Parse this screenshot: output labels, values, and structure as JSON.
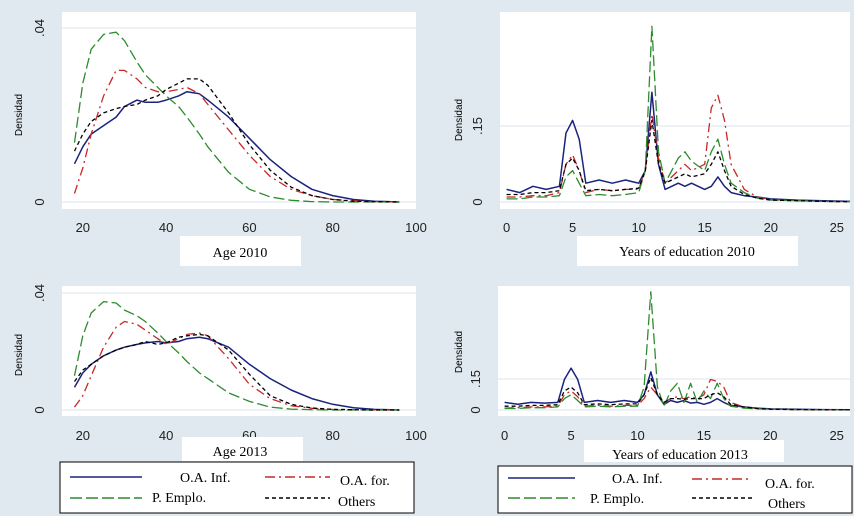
{
  "colors": {
    "background": "#dfe9ef",
    "plot_bg": "#ffffff",
    "oa_inf": "#1a237e",
    "oa_for": "#c62828",
    "p_emplo": "#2e8b2e",
    "others": "#000000"
  },
  "legend": {
    "left": [
      "O.A. Inf.",
      "O.A. for.",
      "P. Emplo.",
      "Others"
    ],
    "right": [
      "O.A. Inf.",
      "O.A. for.",
      "P. Emplo.",
      "Others"
    ]
  },
  "chart_data": [
    {
      "type": "line",
      "xlabel": "Age 2010",
      "ylabel": "Densidad",
      "xlim": [
        15,
        100
      ],
      "ylim": [
        0,
        0.041
      ],
      "xticks": [
        "20",
        "40",
        "60",
        "80",
        "100"
      ],
      "yticks": [
        "0",
        ".04"
      ],
      "x": [
        18,
        20,
        22,
        25,
        28,
        30,
        33,
        35,
        38,
        40,
        43,
        45,
        48,
        50,
        55,
        60,
        65,
        70,
        75,
        80,
        85,
        90,
        96
      ],
      "series": [
        {
          "name": "O.A. Inf.",
          "values": [
            0.009,
            0.013,
            0.016,
            0.018,
            0.02,
            0.0225,
            0.024,
            0.0235,
            0.0235,
            0.024,
            0.025,
            0.026,
            0.0255,
            0.024,
            0.02,
            0.015,
            0.01,
            0.006,
            0.003,
            0.0015,
            0.0006,
            0.0002,
            0.0
          ]
        },
        {
          "name": "O.A. for.",
          "values": [
            0.002,
            0.008,
            0.016,
            0.025,
            0.031,
            0.031,
            0.029,
            0.027,
            0.026,
            0.026,
            0.0265,
            0.027,
            0.0255,
            0.023,
            0.017,
            0.011,
            0.006,
            0.003,
            0.0015,
            0.0006,
            0.0003,
            0.0001,
            0.0
          ]
        },
        {
          "name": "P. Emplo.",
          "values": [
            0.014,
            0.028,
            0.036,
            0.0395,
            0.04,
            0.038,
            0.033,
            0.03,
            0.027,
            0.025,
            0.0225,
            0.02,
            0.016,
            0.013,
            0.007,
            0.003,
            0.0012,
            0.0004,
            0.0001,
            0.0,
            0.0,
            0.0,
            0.0
          ]
        },
        {
          "name": "Others",
          "values": [
            0.012,
            0.016,
            0.019,
            0.021,
            0.022,
            0.0225,
            0.023,
            0.024,
            0.025,
            0.0265,
            0.028,
            0.029,
            0.029,
            0.0275,
            0.021,
            0.0135,
            0.0075,
            0.0035,
            0.0015,
            0.0006,
            0.0002,
            0.0001,
            0.0
          ]
        }
      ]
    },
    {
      "type": "line",
      "xlabel": "Years of education 2010",
      "ylabel": "Densidad",
      "xlim": [
        -0.5,
        26
      ],
      "ylim": [
        0,
        0.29
      ],
      "xticks": [
        "0",
        "5",
        "10",
        "15",
        "20",
        "25"
      ],
      "yticks": [
        "0",
        ".15"
      ],
      "x": [
        0,
        1,
        2,
        3,
        4,
        4.5,
        5,
        5.5,
        6,
        7,
        8,
        9,
        10,
        10.5,
        11,
        11.5,
        12,
        13,
        13.5,
        14,
        15,
        15.5,
        16,
        16.5,
        17,
        18,
        19,
        20,
        22,
        24,
        26
      ],
      "series": [
        {
          "name": "O.A. Inf.",
          "values": [
            0.02,
            0.015,
            0.025,
            0.02,
            0.025,
            0.11,
            0.13,
            0.1,
            0.03,
            0.035,
            0.03,
            0.035,
            0.03,
            0.05,
            0.175,
            0.06,
            0.02,
            0.03,
            0.025,
            0.03,
            0.02,
            0.025,
            0.04,
            0.025,
            0.015,
            0.01,
            0.008,
            0.005,
            0.003,
            0.002,
            0.001
          ]
        },
        {
          "name": "O.A. for.",
          "values": [
            0.008,
            0.008,
            0.01,
            0.01,
            0.015,
            0.06,
            0.075,
            0.05,
            0.015,
            0.02,
            0.018,
            0.02,
            0.02,
            0.05,
            0.14,
            0.07,
            0.03,
            0.05,
            0.06,
            0.05,
            0.06,
            0.15,
            0.17,
            0.13,
            0.06,
            0.02,
            0.008,
            0.004,
            0.002,
            0.001,
            0.0005
          ]
        },
        {
          "name": "P. Emplo.",
          "values": [
            0.005,
            0.005,
            0.008,
            0.008,
            0.01,
            0.04,
            0.05,
            0.03,
            0.01,
            0.012,
            0.01,
            0.012,
            0.015,
            0.05,
            0.28,
            0.08,
            0.03,
            0.07,
            0.08,
            0.065,
            0.05,
            0.08,
            0.1,
            0.06,
            0.03,
            0.015,
            0.006,
            0.003,
            0.002,
            0.001,
            0.0005
          ]
        },
        {
          "name": "Others",
          "values": [
            0.012,
            0.012,
            0.015,
            0.015,
            0.018,
            0.06,
            0.07,
            0.05,
            0.018,
            0.02,
            0.018,
            0.02,
            0.022,
            0.05,
            0.13,
            0.06,
            0.03,
            0.04,
            0.045,
            0.04,
            0.045,
            0.06,
            0.08,
            0.05,
            0.025,
            0.012,
            0.006,
            0.003,
            0.002,
            0.001,
            0.0005
          ]
        }
      ]
    },
    {
      "type": "line",
      "xlabel": "Age 2013",
      "ylabel": "Densidad",
      "xlim": [
        15,
        100
      ],
      "ylim": [
        0,
        0.041
      ],
      "xticks": [
        "20",
        "40",
        "60",
        "80",
        "100"
      ],
      "yticks": [
        "0",
        ".04"
      ],
      "x": [
        18,
        20,
        22,
        25,
        28,
        30,
        33,
        35,
        38,
        40,
        43,
        45,
        48,
        50,
        55,
        60,
        65,
        70,
        75,
        80,
        85,
        90,
        96
      ],
      "series": [
        {
          "name": "O.A. Inf.",
          "values": [
            0.008,
            0.013,
            0.016,
            0.019,
            0.021,
            0.022,
            0.023,
            0.0235,
            0.024,
            0.0235,
            0.024,
            0.025,
            0.0255,
            0.025,
            0.022,
            0.016,
            0.011,
            0.007,
            0.004,
            0.002,
            0.0008,
            0.0002,
            0.0
          ]
        },
        {
          "name": "O.A. for.",
          "values": [
            0.001,
            0.005,
            0.012,
            0.022,
            0.029,
            0.031,
            0.03,
            0.028,
            0.025,
            0.023,
            0.025,
            0.0265,
            0.027,
            0.026,
            0.018,
            0.009,
            0.004,
            0.0015,
            0.0006,
            0.0002,
            0.0001,
            0.0,
            0.0
          ]
        },
        {
          "name": "P. Emplo.",
          "values": [
            0.012,
            0.026,
            0.034,
            0.038,
            0.0375,
            0.035,
            0.033,
            0.031,
            0.027,
            0.024,
            0.02,
            0.017,
            0.013,
            0.011,
            0.006,
            0.003,
            0.001,
            0.0003,
            0.0001,
            0.0,
            0.0,
            0.0,
            0.0
          ]
        },
        {
          "name": "Others",
          "values": [
            0.01,
            0.014,
            0.016,
            0.019,
            0.021,
            0.022,
            0.023,
            0.024,
            0.023,
            0.0235,
            0.0255,
            0.026,
            0.0265,
            0.026,
            0.021,
            0.0125,
            0.005,
            0.002,
            0.0007,
            0.0002,
            0.0001,
            0.0,
            0.0
          ]
        }
      ]
    },
    {
      "type": "line",
      "xlabel": "Years of education 2013",
      "ylabel": "Densidad",
      "xlim": [
        -0.5,
        26
      ],
      "ylim": [
        0,
        0.32
      ],
      "xticks": [
        "0",
        "5",
        "10",
        "15",
        "20",
        "25"
      ],
      "yticks": [
        "0",
        ".15"
      ],
      "x": [
        0,
        1,
        2,
        3,
        4,
        4.5,
        5,
        5.5,
        6,
        7,
        8,
        9,
        10,
        10.5,
        11,
        11.5,
        12,
        12.5,
        13,
        13.5,
        14,
        14.5,
        15,
        15.5,
        16,
        16.5,
        17,
        18,
        19,
        20,
        22,
        24,
        26
      ],
      "series": [
        {
          "name": "O.A. Inf.",
          "values": [
            0.02,
            0.015,
            0.02,
            0.018,
            0.02,
            0.08,
            0.11,
            0.08,
            0.02,
            0.025,
            0.02,
            0.025,
            0.02,
            0.04,
            0.1,
            0.04,
            0.015,
            0.025,
            0.02,
            0.025,
            0.018,
            0.02,
            0.015,
            0.02,
            0.03,
            0.02,
            0.012,
            0.008,
            0.005,
            0.003,
            0.002,
            0.001,
            0.0005
          ]
        },
        {
          "name": "O.A. for.",
          "values": [
            0.005,
            0.006,
            0.008,
            0.008,
            0.01,
            0.04,
            0.05,
            0.035,
            0.01,
            0.012,
            0.01,
            0.012,
            0.012,
            0.03,
            0.06,
            0.04,
            0.02,
            0.03,
            0.035,
            0.03,
            0.035,
            0.03,
            0.04,
            0.08,
            0.075,
            0.06,
            0.02,
            0.008,
            0.004,
            0.002,
            0.001,
            0.0005,
            0.0002
          ]
        },
        {
          "name": "P. Emplo.",
          "values": [
            0.004,
            0.004,
            0.006,
            0.006,
            0.008,
            0.03,
            0.04,
            0.025,
            0.008,
            0.01,
            0.008,
            0.01,
            0.01,
            0.06,
            0.31,
            0.06,
            0.01,
            0.05,
            0.07,
            0.02,
            0.07,
            0.02,
            0.05,
            0.03,
            0.07,
            0.03,
            0.01,
            0.005,
            0.003,
            0.002,
            0.001,
            0.0005,
            0.0002
          ]
        },
        {
          "name": "Others",
          "values": [
            0.01,
            0.01,
            0.012,
            0.012,
            0.014,
            0.05,
            0.06,
            0.045,
            0.014,
            0.016,
            0.014,
            0.016,
            0.016,
            0.04,
            0.085,
            0.04,
            0.02,
            0.03,
            0.03,
            0.028,
            0.03,
            0.03,
            0.03,
            0.04,
            0.045,
            0.035,
            0.015,
            0.008,
            0.004,
            0.002,
            0.001,
            0.0005,
            0.0002
          ]
        }
      ]
    }
  ]
}
